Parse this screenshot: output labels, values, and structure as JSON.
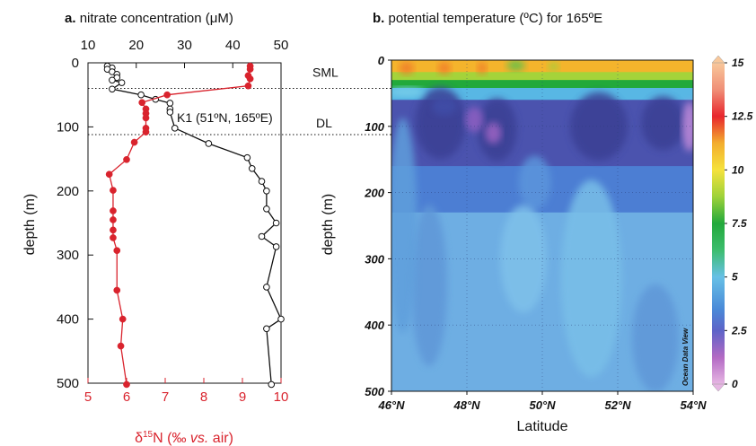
{
  "chart_data": [
    {
      "type": "line",
      "panel_letter": "a.",
      "title": "nitrate concentration (μM)",
      "top_axis": {
        "label": "nitrate concentration (μM)",
        "range": [
          10,
          50
        ],
        "ticks": [
          "10",
          "20",
          "30",
          "40",
          "50"
        ]
      },
      "bottom_axis": {
        "label": "δ15N (‰ vs. air)",
        "range": [
          5,
          10
        ],
        "ticks": [
          "5",
          "6",
          "7",
          "8",
          "9",
          "10"
        ]
      },
      "y_axis": {
        "label": "depth (m)",
        "range": [
          0,
          500
        ],
        "inverted": true,
        "ticks": [
          "0",
          "100",
          "200",
          "300",
          "400",
          "500"
        ]
      },
      "series": [
        {
          "name": "nitrate concentration",
          "color": "#111111",
          "marker": "open-circle",
          "points": [
            [
              14,
              5
            ],
            [
              15,
              8
            ],
            [
              14,
              10
            ],
            [
              15,
              14
            ],
            [
              16,
              18
            ],
            [
              16,
              23
            ],
            [
              15,
              27
            ],
            [
              17,
              31
            ],
            [
              15,
              41
            ],
            [
              21,
              50
            ],
            [
              24,
              57
            ],
            [
              27,
              63
            ],
            [
              27,
              72
            ],
            [
              27,
              77
            ],
            [
              28,
              102
            ],
            [
              35,
              126
            ],
            [
              43,
              148
            ],
            [
              44,
              165
            ],
            [
              46,
              185
            ],
            [
              47,
              200
            ],
            [
              47,
              228
            ],
            [
              49,
              250
            ],
            [
              46,
              271
            ],
            [
              49,
              287
            ],
            [
              47,
              350
            ],
            [
              50,
              400
            ],
            [
              47,
              415
            ],
            [
              48,
              502
            ]
          ]
        },
        {
          "name": "δ15N",
          "color": "#d9232d",
          "marker": "filled-circle",
          "points": [
            [
              9.2,
              5
            ],
            [
              9.2,
              10
            ],
            [
              9.15,
              20
            ],
            [
              9.2,
              25
            ],
            [
              9.15,
              36
            ],
            [
              7.05,
              50
            ],
            [
              6.4,
              62
            ],
            [
              6.5,
              72
            ],
            [
              6.5,
              79
            ],
            [
              6.5,
              86
            ],
            [
              6.5,
              102
            ],
            [
              6.5,
              108
            ],
            [
              6.2,
              124
            ],
            [
              6.0,
              151
            ],
            [
              5.55,
              174
            ],
            [
              5.65,
              199
            ],
            [
              5.65,
              231
            ],
            [
              5.65,
              245
            ],
            [
              5.65,
              261
            ],
            [
              5.65,
              273
            ],
            [
              5.75,
              293
            ],
            [
              5.75,
              355
            ],
            [
              5.9,
              400
            ],
            [
              5.85,
              442
            ],
            [
              6.0,
              502
            ]
          ]
        }
      ],
      "reference_lines": [
        {
          "depth": 40,
          "label": "SML"
        },
        {
          "depth": 112,
          "label": "DL"
        }
      ],
      "annotation": "K1 (51ºN, 165ºE)"
    },
    {
      "type": "heatmap",
      "panel_letter": "b.",
      "title": "potential temperature (ºC) for 165ºE",
      "x_axis": {
        "label": "Latitude",
        "range": [
          46,
          54
        ],
        "ticks": [
          "46°N",
          "48°N",
          "50°N",
          "52°N",
          "54°N"
        ]
      },
      "y_axis": {
        "label": "depth (m)",
        "range": [
          0,
          500
        ],
        "inverted": true,
        "ticks": [
          "0",
          "100",
          "200",
          "300",
          "400",
          "500"
        ]
      },
      "colorbar": {
        "range": [
          0,
          15
        ],
        "ticks": [
          "0",
          "2.5",
          "5",
          "7.5",
          "10",
          "12.5",
          "15"
        ],
        "stops": [
          {
            "value": 0,
            "color": "#e6b6e3"
          },
          {
            "value": 1.25,
            "color": "#b36ac4"
          },
          {
            "value": 2.5,
            "color": "#5d63c8"
          },
          {
            "value": 3.5,
            "color": "#4a8ad8"
          },
          {
            "value": 5,
            "color": "#67c0e6"
          },
          {
            "value": 6.25,
            "color": "#3cbd6e"
          },
          {
            "value": 7.5,
            "color": "#22a93b"
          },
          {
            "value": 8.75,
            "color": "#9ed23a"
          },
          {
            "value": 10,
            "color": "#f5e23c"
          },
          {
            "value": 11.25,
            "color": "#f3ad2e"
          },
          {
            "value": 12.5,
            "color": "#e8262d"
          },
          {
            "value": 13.75,
            "color": "#f08f77"
          },
          {
            "value": 15,
            "color": "#f8c89b"
          }
        ]
      },
      "watermark": "Ocean Data View",
      "layers": [
        {
          "depth_range": [
            0,
            18
          ],
          "temperature": 10.5,
          "color": "#f4b42c"
        },
        {
          "depth_range": [
            18,
            30
          ],
          "temperature": 8.5,
          "color": "#a5d33a"
        },
        {
          "depth_range": [
            30,
            42
          ],
          "temperature": 7,
          "color": "#22a93b"
        },
        {
          "depth_range": [
            42,
            60
          ],
          "temperature": 4.5,
          "color": "#58b7e4"
        },
        {
          "depth_range": [
            60,
            160
          ],
          "temperature": 2,
          "color": "#4b53ae"
        },
        {
          "depth_range": [
            160,
            230
          ],
          "temperature": 3,
          "color": "#4c7ed3"
        },
        {
          "depth_range": [
            230,
            500
          ],
          "temperature": 3.5,
          "color": "#6eaee3"
        }
      ]
    }
  ]
}
